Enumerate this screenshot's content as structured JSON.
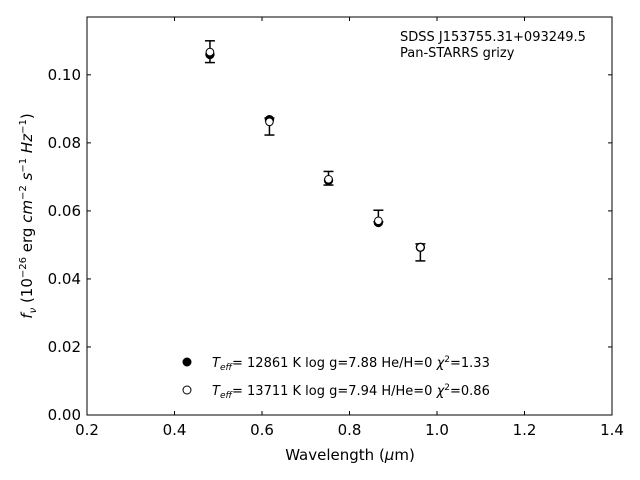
{
  "chart_data": {
    "type": "scatter",
    "title": "",
    "xlabel": "Wavelength (μm)",
    "ylabel": "f_ν (10^−26 erg cm^−2 s^−1 Hz^−1)",
    "xlim": [
      0.2,
      1.4
    ],
    "ylim": [
      0.0,
      0.117
    ],
    "xticks": [
      0.2,
      0.4,
      0.6,
      0.8,
      1.0,
      1.2,
      1.4
    ],
    "yticks": [
      0.0,
      0.02,
      0.04,
      0.06,
      0.08,
      0.1
    ],
    "xtick_labels": [
      "0.2",
      "0.4",
      "0.6",
      "0.8",
      "1.0",
      "1.2",
      "1.4"
    ],
    "ytick_labels": [
      "0.00",
      "0.02",
      "0.04",
      "0.06",
      "0.08",
      "0.10"
    ],
    "grid": false,
    "legend_position": "bottom-center",
    "annotations": [
      "SDSS J153755.31+093249.5",
      "Pan-STARRS grizy"
    ],
    "observed": {
      "x": [
        0.481,
        0.617,
        0.752,
        0.866,
        0.962
      ],
      "y": [
        0.1068,
        0.0848,
        0.0696,
        0.0585,
        0.0478
      ],
      "yerr": [
        0.0032,
        0.0025,
        0.002,
        0.0017,
        0.0025
      ]
    },
    "series": [
      {
        "name": "Teff= 12861 K  log g=7.88  He/H=0  χ²=1.33",
        "label_parts": {
          "prefix": "T",
          "sub": "eff",
          "rest": "= 12861 K  log g=7.88  He/H=0  ",
          "chi": "χ",
          "sup": "2",
          "tail": "=1.33"
        },
        "marker": "filled-circle",
        "x": [
          0.481,
          0.617,
          0.752,
          0.866,
          0.962
        ],
        "y": [
          0.106,
          0.0868,
          0.069,
          0.0566,
          0.0493
        ]
      },
      {
        "name": "Teff= 13711 K  log g=7.94  H/He=0  χ²=0.86",
        "label_parts": {
          "prefix": "T",
          "sub": "eff",
          "rest": "= 13711 K  log g=7.94  H/He=0  ",
          "chi": "χ",
          "sup": "2",
          "tail": "=0.86"
        },
        "marker": "open-circle",
        "x": [
          0.481,
          0.617,
          0.752,
          0.866,
          0.962
        ],
        "y": [
          0.1067,
          0.0862,
          0.0693,
          0.0571,
          0.0493
        ]
      }
    ]
  }
}
